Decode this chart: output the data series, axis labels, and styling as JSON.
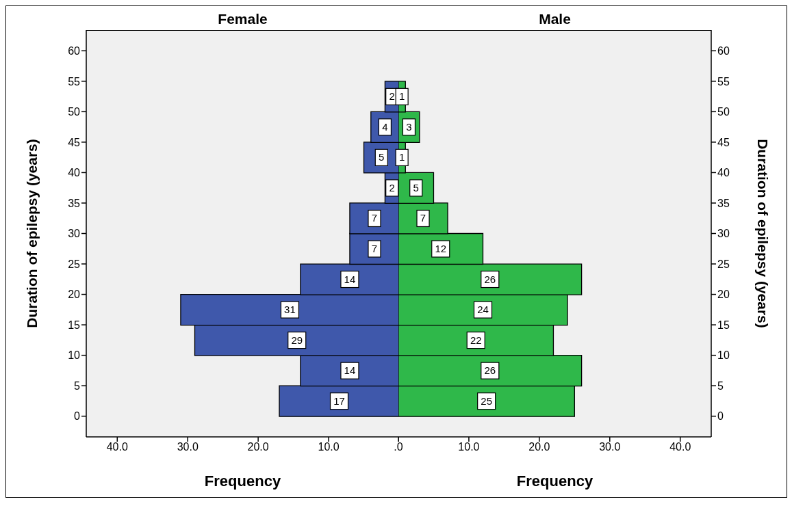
{
  "chart_data": [
    {
      "type": "histogram",
      "title": "Female",
      "orientation": "horizontal",
      "bins": [
        0,
        5,
        10,
        15,
        20,
        25,
        30,
        35,
        40,
        45,
        50,
        55
      ],
      "values": [
        17,
        14,
        29,
        31,
        14,
        7,
        7,
        2,
        5,
        4,
        2
      ],
      "color": "#3f58ab",
      "data_labels": true,
      "xlabel": "Frequency",
      "ylabel": "Duration of epilepsy (years)",
      "xlim": [
        44.4,
        0
      ],
      "xticks": [
        {
          "value": 40,
          "label": "40.0"
        },
        {
          "value": 30,
          "label": "30.0"
        },
        {
          "value": 20,
          "label": "20.0"
        },
        {
          "value": 10,
          "label": "10.0"
        },
        {
          "value": 0,
          "label": null
        }
      ],
      "ylim": [
        -3.4,
        63.4
      ],
      "yticks": [
        0,
        5,
        10,
        15,
        20,
        25,
        30,
        35,
        40,
        45,
        50,
        55,
        60
      ]
    },
    {
      "type": "histogram",
      "title": "Male",
      "orientation": "horizontal",
      "bins": [
        0,
        5,
        10,
        15,
        20,
        25,
        30,
        35,
        40,
        45,
        50,
        55
      ],
      "values": [
        25,
        26,
        22,
        24,
        26,
        12,
        7,
        5,
        1,
        3,
        1
      ],
      "color": "#2fb84a",
      "data_labels": true,
      "xlabel": "Frequency",
      "ylabel": "Duration of epilepsy (years)",
      "xlim": [
        0,
        44.4
      ],
      "xticks": [
        {
          "value": 0,
          "label": ".0"
        },
        {
          "value": 10,
          "label": "10.0"
        },
        {
          "value": 20,
          "label": "20.0"
        },
        {
          "value": 30,
          "label": "30.0"
        },
        {
          "value": 40,
          "label": "40.0"
        }
      ],
      "ylim": [
        -3.4,
        63.4
      ],
      "yticks": [
        0,
        5,
        10,
        15,
        20,
        25,
        30,
        35,
        40,
        45,
        50,
        55,
        60
      ]
    }
  ]
}
